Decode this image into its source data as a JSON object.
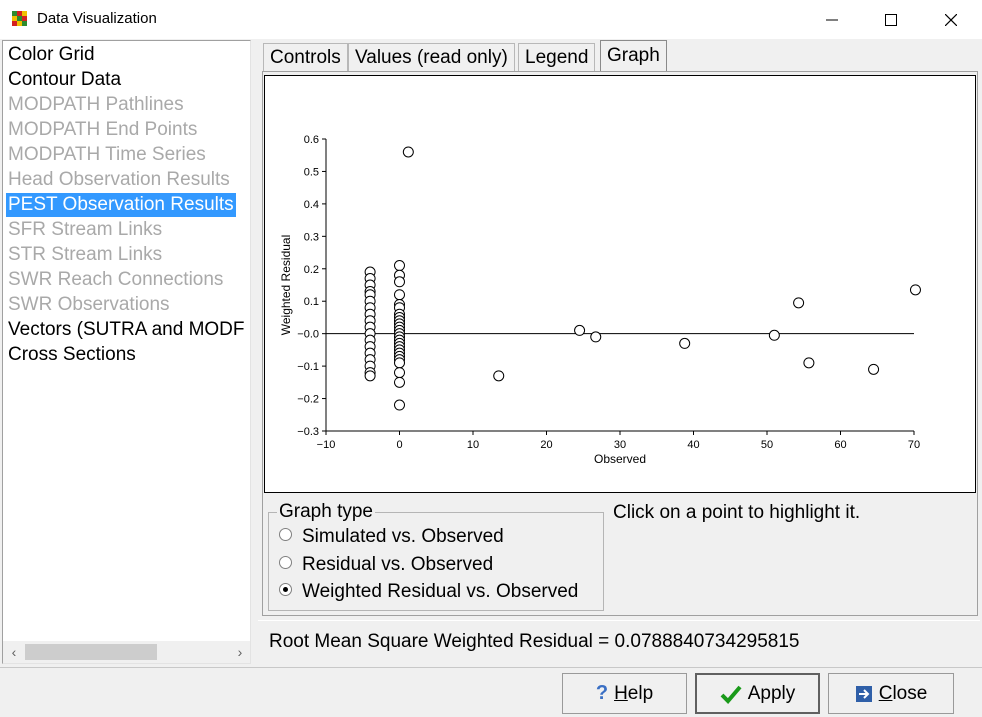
{
  "window": {
    "title": "Data Visualization"
  },
  "tree": {
    "items": [
      {
        "label": "Color Grid",
        "state": "enabled"
      },
      {
        "label": "Contour Data",
        "state": "enabled"
      },
      {
        "label": "MODPATH Pathlines",
        "state": "disabled"
      },
      {
        "label": "MODPATH End Points",
        "state": "disabled"
      },
      {
        "label": "MODPATH Time Series",
        "state": "disabled"
      },
      {
        "label": "Head Observation Results",
        "state": "disabled"
      },
      {
        "label": "PEST Observation Results",
        "state": "selected"
      },
      {
        "label": "SFR Stream Links",
        "state": "disabled"
      },
      {
        "label": "STR Stream Links",
        "state": "disabled"
      },
      {
        "label": "SWR Reach Connections",
        "state": "disabled"
      },
      {
        "label": "SWR Observations",
        "state": "disabled"
      },
      {
        "label": "Vectors (SUTRA and MODF",
        "state": "enabled"
      },
      {
        "label": "Cross Sections",
        "state": "enabled"
      }
    ]
  },
  "tabs": [
    {
      "label": "Controls"
    },
    {
      "label": "Values (read only)"
    },
    {
      "label": "Legend"
    },
    {
      "label": "Graph",
      "active": true
    }
  ],
  "graph_type": {
    "title": "Graph type",
    "options": [
      {
        "label": "Simulated vs. Observed",
        "checked": false
      },
      {
        "label": "Residual vs. Observed",
        "checked": false
      },
      {
        "label": "Weighted Residual vs. Observed",
        "checked": true
      }
    ]
  },
  "hint": "Click on a point to highlight it.",
  "status": {
    "rms": "Root Mean Square Weighted Residual = 0.0788840734295815"
  },
  "buttons": {
    "help": {
      "prefix": "",
      "accel": "H",
      "rest": "elp"
    },
    "apply": {
      "label": "Apply"
    },
    "close": {
      "accel": "C",
      "rest": "lose"
    }
  },
  "chart_data": {
    "type": "scatter",
    "title": "",
    "xlabel": "Observed",
    "ylabel": "Weighted Residual",
    "xlim": [
      -10,
      70
    ],
    "ylim": [
      -0.3,
      0.6
    ],
    "xticks": [
      -10,
      0,
      10,
      20,
      30,
      40,
      50,
      60,
      70
    ],
    "xtick_labels": [
      "−10",
      "0",
      "10",
      "20",
      "30",
      "40",
      "50",
      "60",
      "70"
    ],
    "yticks": [
      -0.3,
      -0.2,
      -0.1,
      0.0,
      0.1,
      0.2,
      0.3,
      0.4,
      0.5,
      0.6
    ],
    "ytick_labels": [
      "−0.3",
      "−0.2",
      "−0.1",
      "−0.0",
      "0.1",
      "0.2",
      "0.3",
      "0.4",
      "0.5",
      "0.6"
    ],
    "zero_line": 0,
    "grid": false,
    "points": [
      [
        -4,
        0.19
      ],
      [
        -4,
        0.17
      ],
      [
        -4,
        0.15
      ],
      [
        -4,
        0.13
      ],
      [
        -4,
        0.12
      ],
      [
        -4,
        0.1
      ],
      [
        -4,
        0.08
      ],
      [
        -4,
        0.06
      ],
      [
        -4,
        0.04
      ],
      [
        -4,
        0.02
      ],
      [
        -4,
        0.0
      ],
      [
        -4,
        -0.02
      ],
      [
        -4,
        -0.04
      ],
      [
        -4,
        -0.06
      ],
      [
        -4,
        -0.08
      ],
      [
        -4,
        -0.1
      ],
      [
        -4,
        -0.12
      ],
      [
        -4,
        -0.13
      ],
      [
        0,
        0.21
      ],
      [
        0,
        0.18
      ],
      [
        0,
        0.16
      ],
      [
        0,
        0.12
      ],
      [
        0,
        0.09
      ],
      [
        0,
        0.08
      ],
      [
        0,
        0.06
      ],
      [
        0,
        0.05
      ],
      [
        0,
        0.04
      ],
      [
        0,
        0.03
      ],
      [
        0,
        0.02
      ],
      [
        0,
        0.01
      ],
      [
        0,
        0.0
      ],
      [
        0,
        -0.01
      ],
      [
        0,
        -0.02
      ],
      [
        0,
        -0.03
      ],
      [
        0,
        -0.04
      ],
      [
        0,
        -0.05
      ],
      [
        0,
        -0.06
      ],
      [
        0,
        -0.07
      ],
      [
        0,
        -0.08
      ],
      [
        0,
        -0.09
      ],
      [
        0,
        -0.12
      ],
      [
        0,
        -0.15
      ],
      [
        0,
        -0.22
      ],
      [
        1.2,
        0.56
      ],
      [
        13.5,
        -0.13
      ],
      [
        24.5,
        0.01
      ],
      [
        26.7,
        -0.01
      ],
      [
        38.8,
        -0.03
      ],
      [
        51,
        -0.005
      ],
      [
        54.3,
        0.095
      ],
      [
        55.7,
        -0.09
      ],
      [
        64.5,
        -0.11
      ],
      [
        70.2,
        0.135
      ]
    ]
  }
}
